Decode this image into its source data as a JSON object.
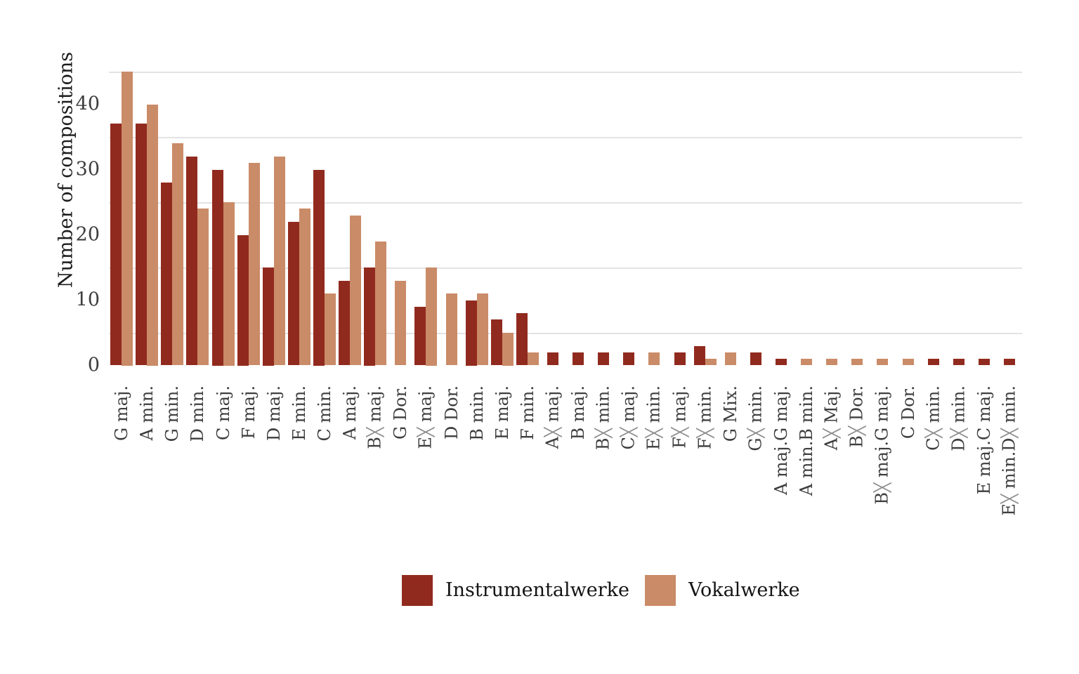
{
  "chart_data": {
    "type": "bar",
    "title": "",
    "ylabel": "Number of compositions",
    "xlabel": "",
    "legend_position": "bottom",
    "grid": "minor-horizontal-only",
    "ylim": [
      0,
      46.5
    ],
    "y_ticks": [
      0,
      10,
      20,
      30,
      40
    ],
    "minor_gridlines": [
      5,
      15,
      25,
      35,
      45
    ],
    "categories": [
      "G maj.",
      "A min.",
      "G min.",
      "D min.",
      "C maj.",
      "F maj.",
      "D maj.",
      "E min.",
      "C min.",
      "A maj.",
      "B╳ maj.",
      "G Dor.",
      "E╳ maj.",
      "D Dor.",
      "B min.",
      "E maj.",
      "F min.",
      "A╳ maj.",
      "B maj.",
      "B╳ min.",
      "C╳ maj.",
      "E╳ min.",
      "F╳ maj.",
      "F╳ min.",
      "G Mix.",
      "G╳ min.",
      "A maj.G maj.",
      "A min.B min.",
      "A╳ Maj.",
      "B╳ Dor.",
      "B╳ maj.G maj.",
      "C Dor.",
      "C╳ min.",
      "D╳ min.",
      "E maj.C maj.",
      "E╳ min.D╳ min."
    ],
    "series": [
      {
        "name": "Instrumentalwerke",
        "color": "#912a1e",
        "values": [
          37,
          37,
          28,
          32,
          30,
          20,
          15,
          22,
          30,
          13,
          15,
          null,
          9,
          null,
          10,
          7,
          8,
          2,
          2,
          2,
          2,
          null,
          2,
          3,
          null,
          2,
          1,
          null,
          null,
          null,
          null,
          null,
          1,
          1,
          1,
          1
        ]
      },
      {
        "name": "Vokalwerke",
        "color": "#ca8b68",
        "values": [
          45,
          40,
          34,
          24,
          25,
          31,
          32,
          24,
          11,
          23,
          19,
          13,
          15,
          11,
          11,
          5,
          2,
          null,
          null,
          null,
          null,
          2,
          null,
          1,
          2,
          null,
          null,
          1,
          1,
          1,
          1,
          1,
          null,
          null,
          null,
          null
        ]
      }
    ],
    "palette": {
      "gridline": "#e3e3e3",
      "axis_text": "#3e3e3e",
      "title_text": "#1c1c1c",
      "legend_text": "#141414",
      "background": "#ffffff"
    }
  }
}
